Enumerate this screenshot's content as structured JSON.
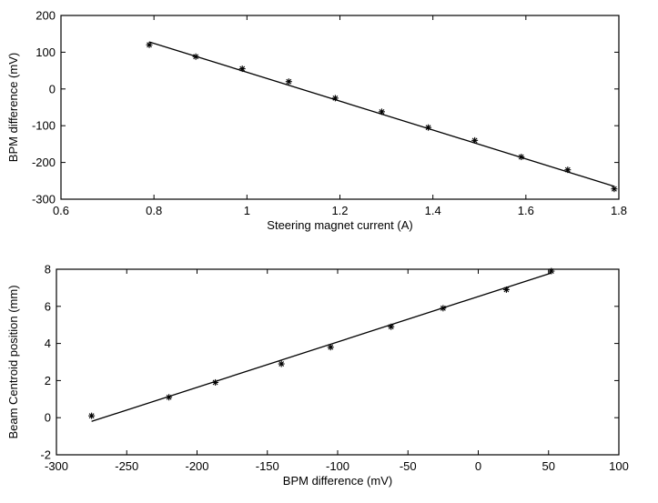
{
  "chart_data": [
    {
      "type": "scatter",
      "title": "",
      "xlabel": "Steering magnet current (A)",
      "ylabel": "BPM difference (mV)",
      "xlim": [
        0.6,
        1.8
      ],
      "ylim": [
        -300,
        200
      ],
      "xticks": [
        0.6,
        0.8,
        1.0,
        1.2,
        1.4,
        1.6,
        1.8
      ],
      "xtick_labels": [
        "0.6",
        "0.8",
        "1",
        "1.2",
        "1.4",
        "1.6",
        "1.8"
      ],
      "yticks": [
        -300,
        -200,
        -100,
        0,
        100,
        200
      ],
      "ytick_labels": [
        "-300",
        "-200",
        "-100",
        "0",
        "100",
        "200"
      ],
      "grid": false,
      "marker": "asterisk",
      "series": [
        {
          "x": [
            0.79,
            0.89,
            0.99,
            1.09,
            1.19,
            1.29,
            1.39,
            1.49,
            1.59,
            1.69,
            1.79
          ],
          "y": [
            120,
            88,
            55,
            20,
            -25,
            -62,
            -105,
            -140,
            -185,
            -220,
            -272
          ]
        }
      ],
      "fit_line": {
        "x": [
          0.79,
          1.79
        ],
        "y": [
          128,
          -265
        ]
      }
    },
    {
      "type": "scatter",
      "title": "",
      "xlabel": "BPM difference (mV)",
      "ylabel": "Beam Centroid position (mm)",
      "xlim": [
        -300,
        100
      ],
      "ylim": [
        -2,
        8
      ],
      "xticks": [
        -300,
        -250,
        -200,
        -150,
        -100,
        -50,
        0,
        50,
        100
      ],
      "xtick_labels": [
        "-300",
        "-250",
        "-200",
        "-150",
        "-100",
        "-50",
        "0",
        "50",
        "100"
      ],
      "yticks": [
        -2,
        0,
        2,
        4,
        6,
        8
      ],
      "ytick_labels": [
        "-2",
        "0",
        "2",
        "4",
        "6",
        "8"
      ],
      "grid": false,
      "marker": "asterisk",
      "series": [
        {
          "x": [
            -275,
            -220,
            -187,
            -140,
            -105,
            -62,
            -25,
            20,
            52
          ],
          "y": [
            0.1,
            1.1,
            1.9,
            2.9,
            3.8,
            4.9,
            5.9,
            6.9,
            7.9
          ]
        }
      ],
      "fit_line": {
        "x": [
          -275,
          52
        ],
        "y": [
          -0.2,
          7.8
        ]
      }
    }
  ]
}
